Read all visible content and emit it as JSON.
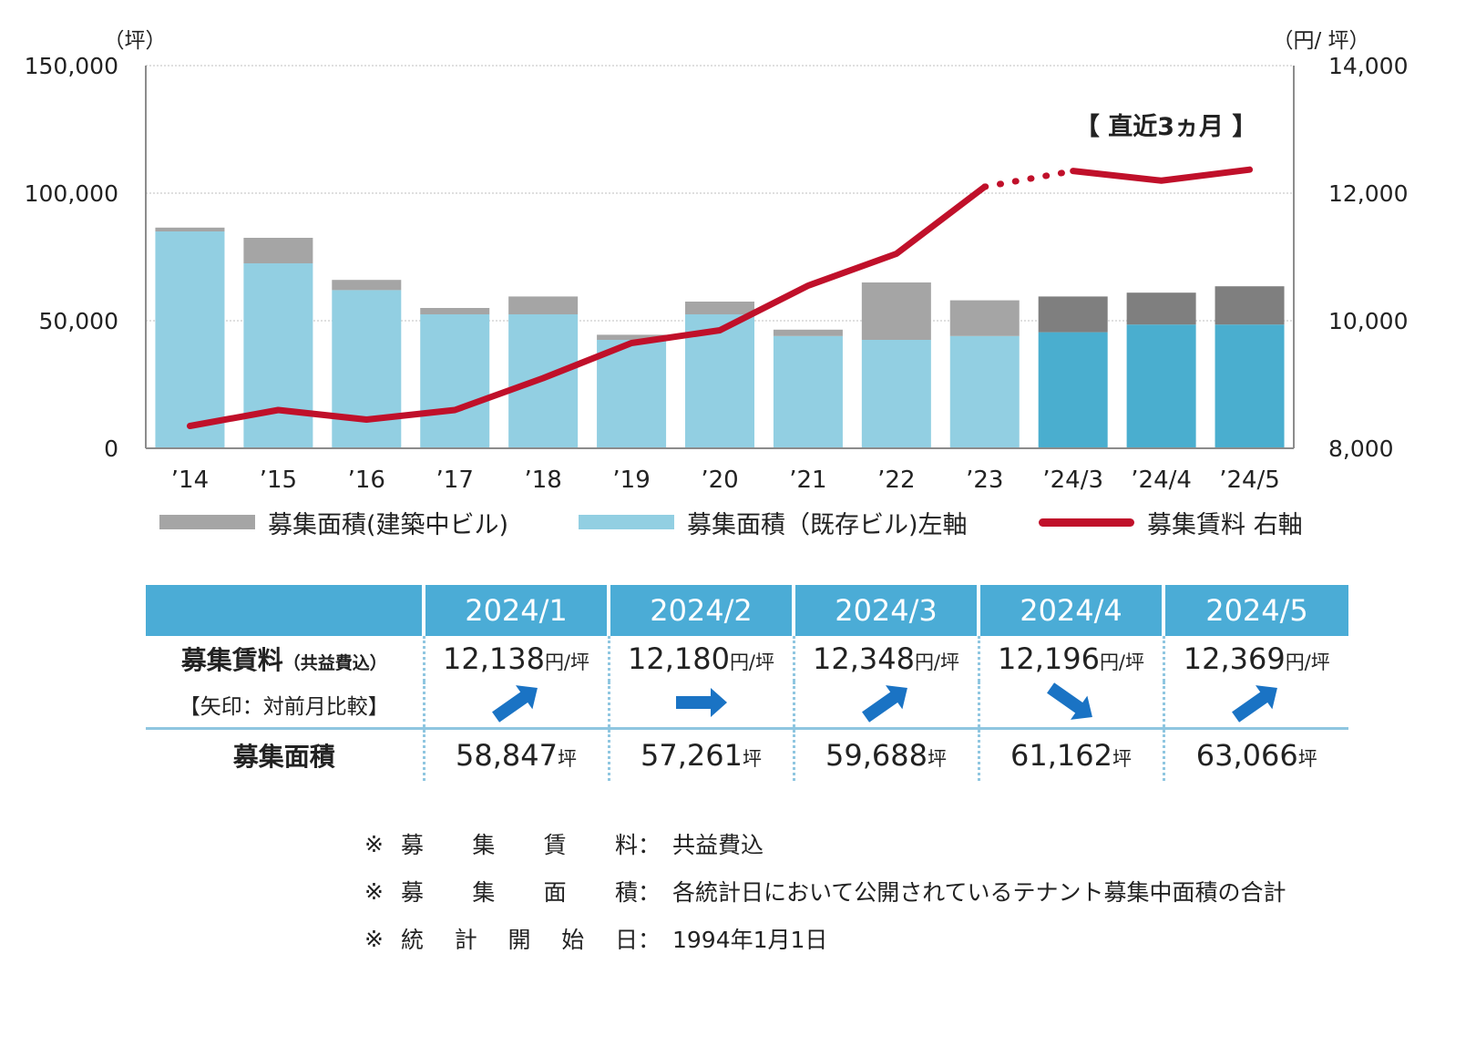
{
  "chart_data": {
    "type": "bar+line",
    "categories": [
      "’14",
      "’15",
      "’16",
      "’17",
      "’18",
      "’19",
      "’20",
      "’21",
      "’22",
      "’23",
      "’24/3",
      "’24/4",
      "’24/5"
    ],
    "left_axis": {
      "unit": "（坪）",
      "min": 0,
      "max": 150000,
      "ticks": [
        "0",
        "50,000",
        "100,000",
        "150,000"
      ],
      "tick_values": [
        0,
        50000,
        100000,
        150000
      ]
    },
    "right_axis": {
      "unit": "（円/ 坪）",
      "min": 8000,
      "max": 14000,
      "ticks": [
        "8,000",
        "10,000",
        "12,000",
        "14,000"
      ],
      "tick_values": [
        8000,
        10000,
        12000,
        14000
      ]
    },
    "series": [
      {
        "name": "募集面積（既存ビル）左軸",
        "type": "bar",
        "axis": "left",
        "values": [
          85000,
          72500,
          62000,
          52500,
          52500,
          42500,
          52500,
          44000,
          42500,
          44000,
          45500,
          48500,
          48500
        ]
      },
      {
        "name": "募集面積（建築中ビル）",
        "type": "bar",
        "axis": "left",
        "values": [
          1500,
          10000,
          4000,
          2500,
          7000,
          2000,
          5000,
          2500,
          22500,
          14000,
          14000,
          12500,
          15000
        ]
      },
      {
        "name": "募集賃料 右軸",
        "type": "line",
        "axis": "right",
        "values": [
          8350,
          8600,
          8450,
          8600,
          9100,
          9650,
          9850,
          10550,
          11050,
          12100,
          12348,
          12196,
          12369
        ]
      }
    ],
    "annotation": "【 直近3ヵ月 】",
    "colors": {
      "bar_existing": "#92cfe2",
      "bar_existing_recent": "#4aaecf",
      "bar_construction": "#a5a5a5",
      "bar_construction_recent": "#7f7f7f",
      "line": "#c0102a",
      "grid": "#bfbfbf",
      "axis": "#8c8c8c"
    }
  },
  "legend": {
    "construction": "募集面積(建築中ビル)",
    "existing": "募集面積（既存ビル)左軸",
    "rent": "募集賃料 右軸",
    "colors": {
      "construction": "#a5a5a5",
      "existing": "#92cfe2",
      "rent": "#c0102a"
    }
  },
  "table": {
    "months": [
      "2024/1",
      "2024/2",
      "2024/3",
      "2024/4",
      "2024/5"
    ],
    "rent_label": "募集賃料",
    "rent_label_note": "（共益費込）",
    "arrow_label": "【矢印：対前月比較】",
    "area_label": "募集面積",
    "rent_unit": "円/坪",
    "area_unit": "坪",
    "rents": [
      "12,138",
      "12,180",
      "12,348",
      "12,196",
      "12,369"
    ],
    "arrows": [
      "up",
      "flat",
      "up",
      "down",
      "up"
    ],
    "areas": [
      "58,847",
      "57,261",
      "59,688",
      "61,162",
      "63,066"
    ],
    "arrow_color": "#1a73c4"
  },
  "notes": [
    {
      "mark": "※",
      "key": [
        "募",
        "集",
        "賃",
        "料"
      ],
      "colon": "：",
      "text": "共益費込"
    },
    {
      "mark": "※",
      "key": [
        "募",
        "集",
        "面",
        "積"
      ],
      "colon": "：",
      "text": "各統計日において公開されているテナント募集中面積の合計"
    },
    {
      "mark": "※",
      "key": [
        "統",
        "計",
        "開",
        "始",
        "日"
      ],
      "colon": "：",
      "text": "1994年1月1日"
    }
  ]
}
